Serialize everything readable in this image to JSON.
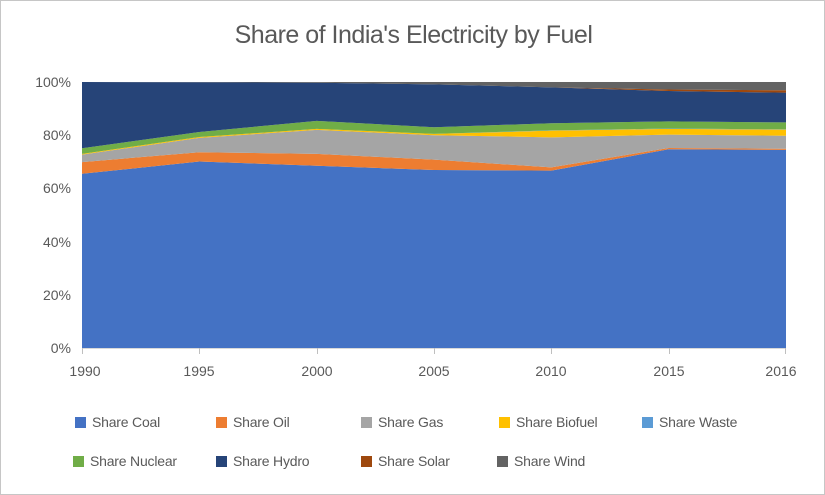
{
  "chart_data": {
    "type": "area",
    "stacking": "percent",
    "title": "Share of India's Electricity by Fuel",
    "categories": [
      "1990",
      "1995",
      "2000",
      "2005",
      "2010",
      "2015",
      "2016"
    ],
    "series": [
      {
        "name": "Share Coal",
        "color": "#4472C4",
        "values": [
          65.5,
          70.1,
          68.5,
          66.9,
          66.7,
          74.7,
          74.5
        ]
      },
      {
        "name": "Share Oil",
        "color": "#ED7D31",
        "values": [
          4.4,
          3.5,
          4.5,
          3.9,
          1.2,
          0.5,
          0.4
        ]
      },
      {
        "name": "Share Gas",
        "color": "#A5A5A5",
        "values": [
          2.8,
          5.4,
          9.0,
          9.2,
          11.3,
          5.0,
          4.9
        ]
      },
      {
        "name": "Share Biofuel",
        "color": "#FFC000",
        "values": [
          0.3,
          0.3,
          0.4,
          0.5,
          2.5,
          2.2,
          2.3
        ]
      },
      {
        "name": "Share Waste",
        "color": "#5B9BD5",
        "values": [
          0.0,
          0.0,
          0.0,
          0.0,
          0.1,
          0.1,
          0.1
        ]
      },
      {
        "name": "Share Nuclear",
        "color": "#70AD47",
        "values": [
          2.1,
          1.9,
          3.0,
          2.5,
          2.7,
          2.7,
          2.6
        ]
      },
      {
        "name": "Share Hydro",
        "color": "#264478",
        "values": [
          24.9,
          18.7,
          14.3,
          16.1,
          13.5,
          11.4,
          11.2
        ]
      },
      {
        "name": "Share Solar",
        "color": "#9E480E",
        "values": [
          0.0,
          0.0,
          0.0,
          0.0,
          0.0,
          0.6,
          0.9
        ]
      },
      {
        "name": "Share Wind",
        "color": "#636363",
        "values": [
          0.0,
          0.1,
          0.3,
          0.9,
          2.0,
          2.8,
          3.1
        ]
      }
    ],
    "ylim": [
      0,
      100
    ],
    "y_tick_labels_desc": [
      "100%",
      "80%",
      "60%",
      "40%",
      "20%",
      "0%"
    ],
    "grid": false,
    "legend_position": "bottom"
  }
}
